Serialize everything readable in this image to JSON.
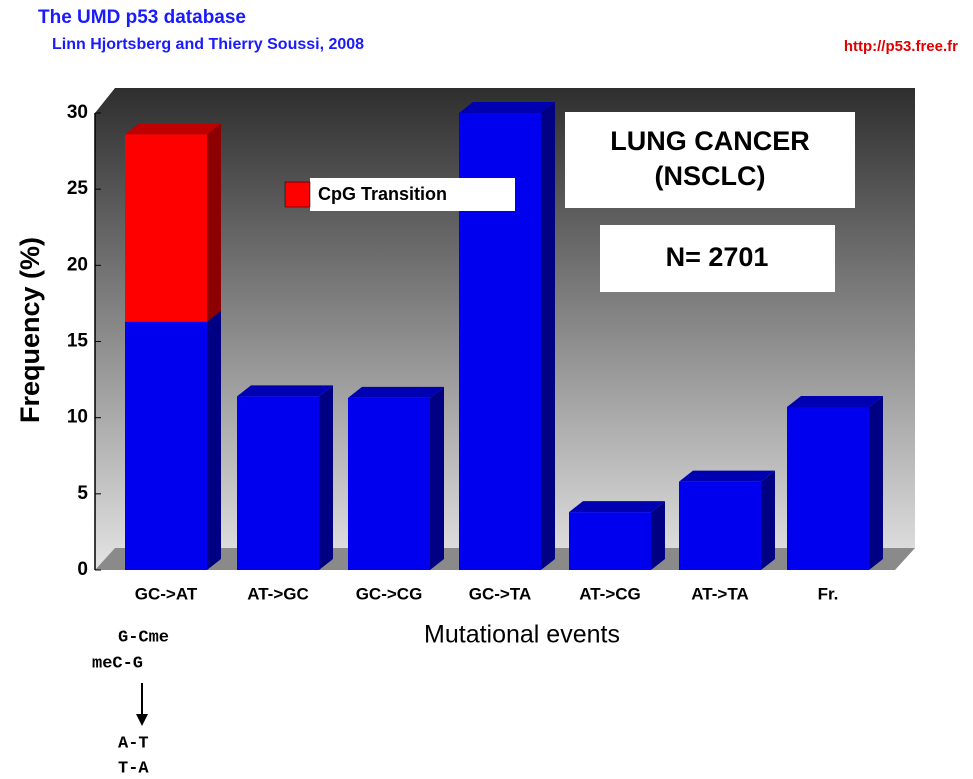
{
  "chart_data": {
    "type": "bar3d",
    "title": "The UMD p53 database",
    "subtitle": "Linn Hjortsberg and Thierry Soussi, 2008",
    "source": "http://p53.free.fr",
    "y_label": "Frequency (%)",
    "x_label": "Mutational events",
    "annotations": [
      "LUNG CANCER",
      "(NSCLC)",
      "N= 2701"
    ],
    "notes": [
      "G-Cme",
      "meC-G",
      "A-T",
      "T-A"
    ],
    "categories": [
      "GC->AT",
      "AT->GC",
      "GC->CG",
      "GC->TA",
      "AT->CG",
      "AT->TA",
      "Fr."
    ],
    "series": [
      {
        "color": "#0000ee",
        "values": [
          16.3,
          11.4,
          11.3,
          30.0,
          3.8,
          5.8,
          10.7
        ]
      },
      {
        "name": "CpG Transition",
        "color": "#ff0000",
        "values": [
          12.3,
          null,
          null,
          null,
          null,
          null,
          null
        ]
      }
    ],
    "ylim": [
      0,
      30
    ],
    "yticks": [
      0,
      5,
      10,
      15,
      20,
      25,
      30
    ],
    "grid": false,
    "stacked": true
  }
}
